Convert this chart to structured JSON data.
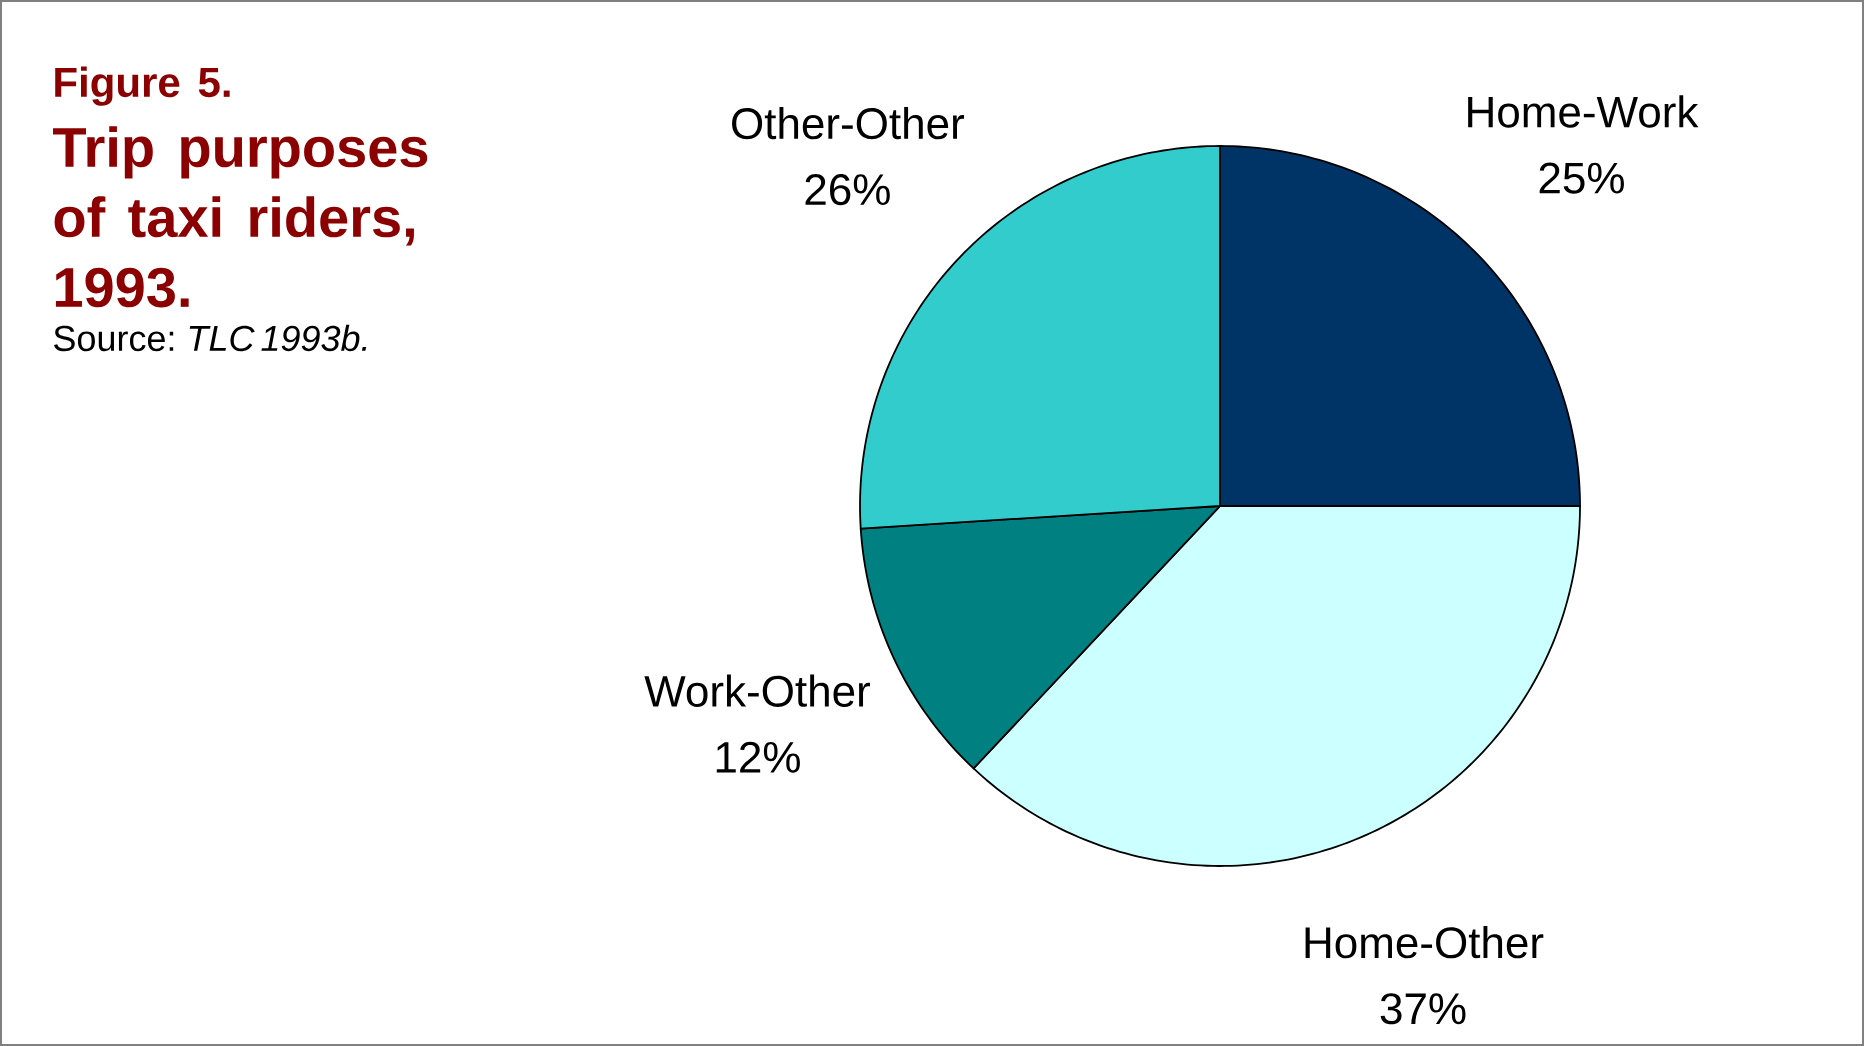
{
  "chart_data": {
    "type": "pie",
    "title": "Figure 5.",
    "subtitle": "Trip purposes of taxi riders, 1993.",
    "categories": [
      "Home-Work",
      "Home-Other",
      "Work-Other",
      "Other-Other"
    ],
    "values": [
      25,
      37,
      12,
      26
    ],
    "colors": [
      "#003366",
      "#ccffff",
      "#008080",
      "#33cccc"
    ],
    "value_labels": [
      "25%",
      "37%",
      "12%",
      "26%"
    ],
    "annotations": [
      "Source: *TLC 1993b.*"
    ]
  }
}
